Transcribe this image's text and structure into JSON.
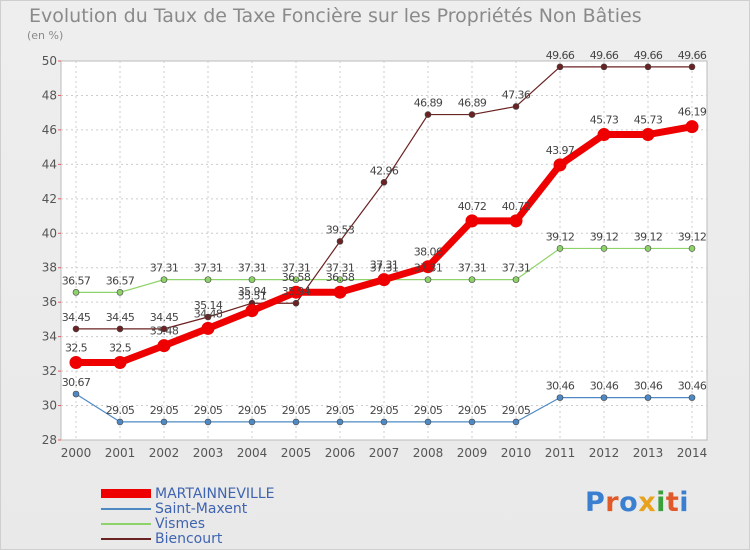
{
  "header": {
    "title": "Evolution du Taux de Taxe Foncière sur les Propriétés Non Bâties",
    "subtitle": "(en %)"
  },
  "logo": {
    "text": "Proxiti",
    "colors": [
      "#3a7fd0",
      "#e05a2a",
      "#3a7fd0",
      "#e8a21e",
      "#3aa03a",
      "#e05a2a",
      "#3a7fd0"
    ]
  },
  "chart_data": {
    "type": "line",
    "title": "Evolution du Taux de Taxe Foncière sur les Propriétés Non Bâties",
    "ylabel": "(en %)",
    "xlabel": "",
    "x": [
      "2000",
      "2001",
      "2002",
      "2003",
      "2004",
      "2005",
      "2006",
      "2007",
      "2008",
      "2009",
      "2010",
      "2011",
      "2012",
      "2013",
      "2014"
    ],
    "ylim": [
      28,
      50
    ],
    "yticks": [
      28,
      30,
      32,
      34,
      36,
      38,
      40,
      42,
      44,
      46,
      48,
      50
    ],
    "grid": true,
    "legend_position": "bottom-left",
    "series": [
      {
        "name": "MARTAINNEVILLE",
        "color": "#ee0000",
        "emphasis": true,
        "values": [
          32.5,
          32.5,
          33.48,
          34.48,
          35.51,
          36.58,
          36.58,
          37.31,
          38.06,
          40.72,
          40.72,
          43.97,
          45.73,
          45.73,
          46.19
        ],
        "labels": [
          "32.5",
          "32.5",
          "33.48",
          "34.48",
          "35.51",
          "36.58",
          "36.58",
          "37.31",
          "38.06",
          "40.72",
          "40.72",
          "43.97",
          "45.73",
          "45.73",
          "46.19"
        ]
      },
      {
        "name": "Saint-Maxent",
        "color": "#4f89c4",
        "values": [
          30.67,
          29.05,
          29.05,
          29.05,
          29.05,
          29.05,
          29.05,
          29.05,
          29.05,
          29.05,
          29.05,
          30.46,
          30.46,
          30.46,
          30.46
        ],
        "labels": [
          "30.67",
          "29.05",
          "29.05",
          "29.05",
          "29.05",
          "29.05",
          "29.05",
          "29.05",
          "29.05",
          "29.05",
          "29.05",
          "30.46",
          "30.46",
          "30.46",
          "30.46"
        ]
      },
      {
        "name": "Vismes",
        "color": "#8ed36a",
        "values": [
          36.57,
          36.57,
          37.31,
          37.31,
          37.31,
          37.31,
          37.31,
          37.31,
          37.31,
          37.31,
          37.31,
          39.12,
          39.12,
          39.12,
          39.12
        ],
        "labels": [
          "36.57",
          "36.57",
          "37.31",
          "37.31",
          "37.31",
          "37.31",
          "37.31",
          "37.31",
          "37.31",
          "37.31",
          "37.31",
          "39.12",
          "39.12",
          "39.12",
          "39.12"
        ]
      },
      {
        "name": "Biencourt",
        "color": "#6b2222",
        "values": [
          34.45,
          34.45,
          34.45,
          35.14,
          35.94,
          35.94,
          39.53,
          42.96,
          46.89,
          46.89,
          47.36,
          49.66,
          49.66,
          49.66,
          49.66
        ],
        "labels": [
          "34.45",
          "34.45",
          "34.45",
          "35.14",
          "35.94",
          "35.94",
          "39.53",
          "42.96",
          "46.89",
          "46.89",
          "47.36",
          "49.66",
          "49.66",
          "49.66",
          "49.66"
        ]
      }
    ]
  }
}
